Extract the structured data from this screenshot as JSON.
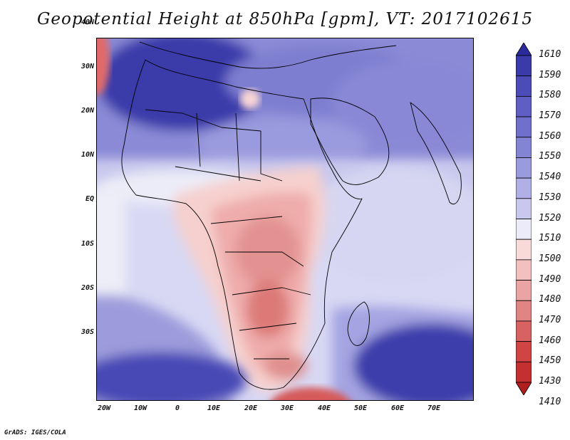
{
  "title": "Geopotential Height at 850hPa [gpm], VT: 2017102615",
  "footer": "GrADS: IGES/COLA",
  "latitude_labels": [
    "40N",
    "30N",
    "20N",
    "10N",
    "EQ",
    "10S",
    "20S",
    "30S"
  ],
  "longitude_labels": [
    "20W",
    "10W",
    "0",
    "10E",
    "20E",
    "30E",
    "40E",
    "50E",
    "60E",
    "70E"
  ],
  "colorbar": {
    "levels": [
      "1610",
      "1590",
      "1580",
      "1570",
      "1560",
      "1550",
      "1540",
      "1530",
      "1520",
      "1510",
      "1500",
      "1490",
      "1480",
      "1470",
      "1460",
      "1450",
      "1430",
      "1410"
    ],
    "colors": [
      "#2a2a9c",
      "#3a3aaa",
      "#4c4cb8",
      "#5e5ec4",
      "#7070cc",
      "#8484d4",
      "#9a9ade",
      "#b0b0e6",
      "#c8c8ee",
      "#ececf8",
      "#f8dada",
      "#f2c0bf",
      "#e9a4a3",
      "#e08584",
      "#d86262",
      "#d04444",
      "#c43030",
      "#b01e1e"
    ]
  },
  "map_region": {
    "lon_range": [
      -23,
      80
    ],
    "lat_range": [
      -36,
      45
    ],
    "colors": {
      "high_blue": "#3535a8",
      "mid_blue": "#8080d0",
      "light_blue": "#b8b8ea",
      "near_white": "#eeeef8",
      "light_red": "#f4c6c4",
      "mid_red": "#e69a98",
      "deep_red": "#d65656"
    }
  }
}
